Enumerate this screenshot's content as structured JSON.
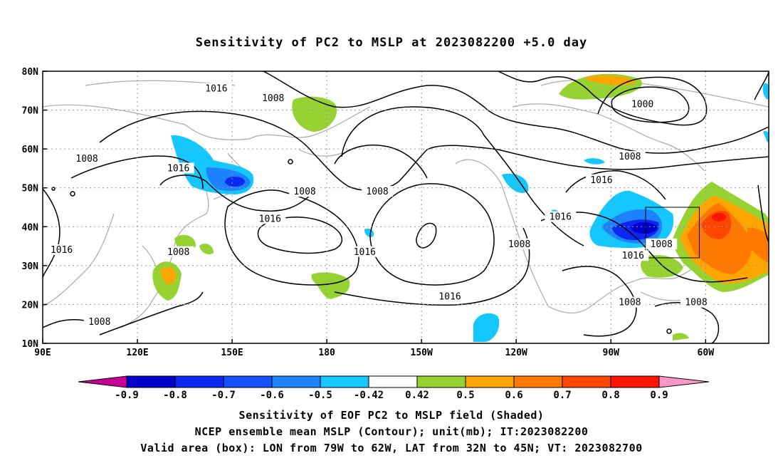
{
  "title": "Sensitivity of PC2 to MSLP at 2023082200 +5.0 day",
  "map": {
    "lon_labels": [
      "90E",
      "120E",
      "150E",
      "180",
      "150W",
      "120W",
      "90W",
      "60W"
    ],
    "lat_labels": [
      "80N",
      "70N",
      "60N",
      "50N",
      "40N",
      "30N",
      "20N",
      "10N"
    ],
    "contour_labels": [
      {
        "text": "1016",
        "lon": 145,
        "lat": 75.5
      },
      {
        "text": "1008",
        "lon": 163,
        "lat": 73
      },
      {
        "text": "1000",
        "lon": 280,
        "lat": 71.5
      },
      {
        "text": "1008",
        "lon": 104,
        "lat": 57.5
      },
      {
        "text": "1016",
        "lon": 133,
        "lat": 55
      },
      {
        "text": "1008",
        "lon": 276,
        "lat": 58
      },
      {
        "text": "1016",
        "lon": 267,
        "lat": 52
      },
      {
        "text": "1008",
        "lon": 173,
        "lat": 49
      },
      {
        "text": "1008",
        "lon": 196,
        "lat": 49
      },
      {
        "text": "1016",
        "lon": 254,
        "lat": 42.5
      },
      {
        "text": "1016",
        "lon": 162,
        "lat": 42
      },
      {
        "text": "1016",
        "lon": 277,
        "lat": 32.5
      },
      {
        "text": "1016",
        "lon": 96,
        "lat": 34
      },
      {
        "text": "1008",
        "lon": 133,
        "lat": 33.5
      },
      {
        "text": "1016",
        "lon": 192,
        "lat": 33.5
      },
      {
        "text": "1008",
        "lon": 241,
        "lat": 35.5
      },
      {
        "text": "1008",
        "lon": 286,
        "lat": 35.5
      },
      {
        "text": "1016",
        "lon": 219,
        "lat": 22
      },
      {
        "text": "1008",
        "lon": 276,
        "lat": 20.5
      },
      {
        "text": "1008",
        "lon": 297,
        "lat": 20.5
      },
      {
        "text": "1008",
        "lon": 108,
        "lat": 15.5
      }
    ],
    "valid_box": {
      "lon_w": 281,
      "lon_e": 298,
      "lat_s": 32,
      "lat_n": 45
    }
  },
  "colorbar": {
    "labels": [
      "-0.9",
      "-0.8",
      "-0.7",
      "-0.6",
      "-0.5",
      "-0.42",
      "0.42",
      "0.5",
      "0.6",
      "0.7",
      "0.8",
      "0.9"
    ],
    "colors": [
      "#0000c8",
      "#0a28f0",
      "#1450ff",
      "#1e82ff",
      "#14c8ff",
      "#ffffff",
      "#96d232",
      "#ffa500",
      "#ff7800",
      "#ff4600",
      "#ff1400"
    ],
    "left_tip_color": "#c80096",
    "right_tip_color": "#ff96c8"
  },
  "captions": {
    "line1": "Sensitivity of EOF PC2 to MSLP field (Shaded)",
    "line2": "NCEP ensemble mean MSLP (Contour); unit(mb); IT:2023082200",
    "line3": "Valid area (box): LON from 79W to 62W, LAT from 32N to 45N; VT: 2023082700"
  }
}
